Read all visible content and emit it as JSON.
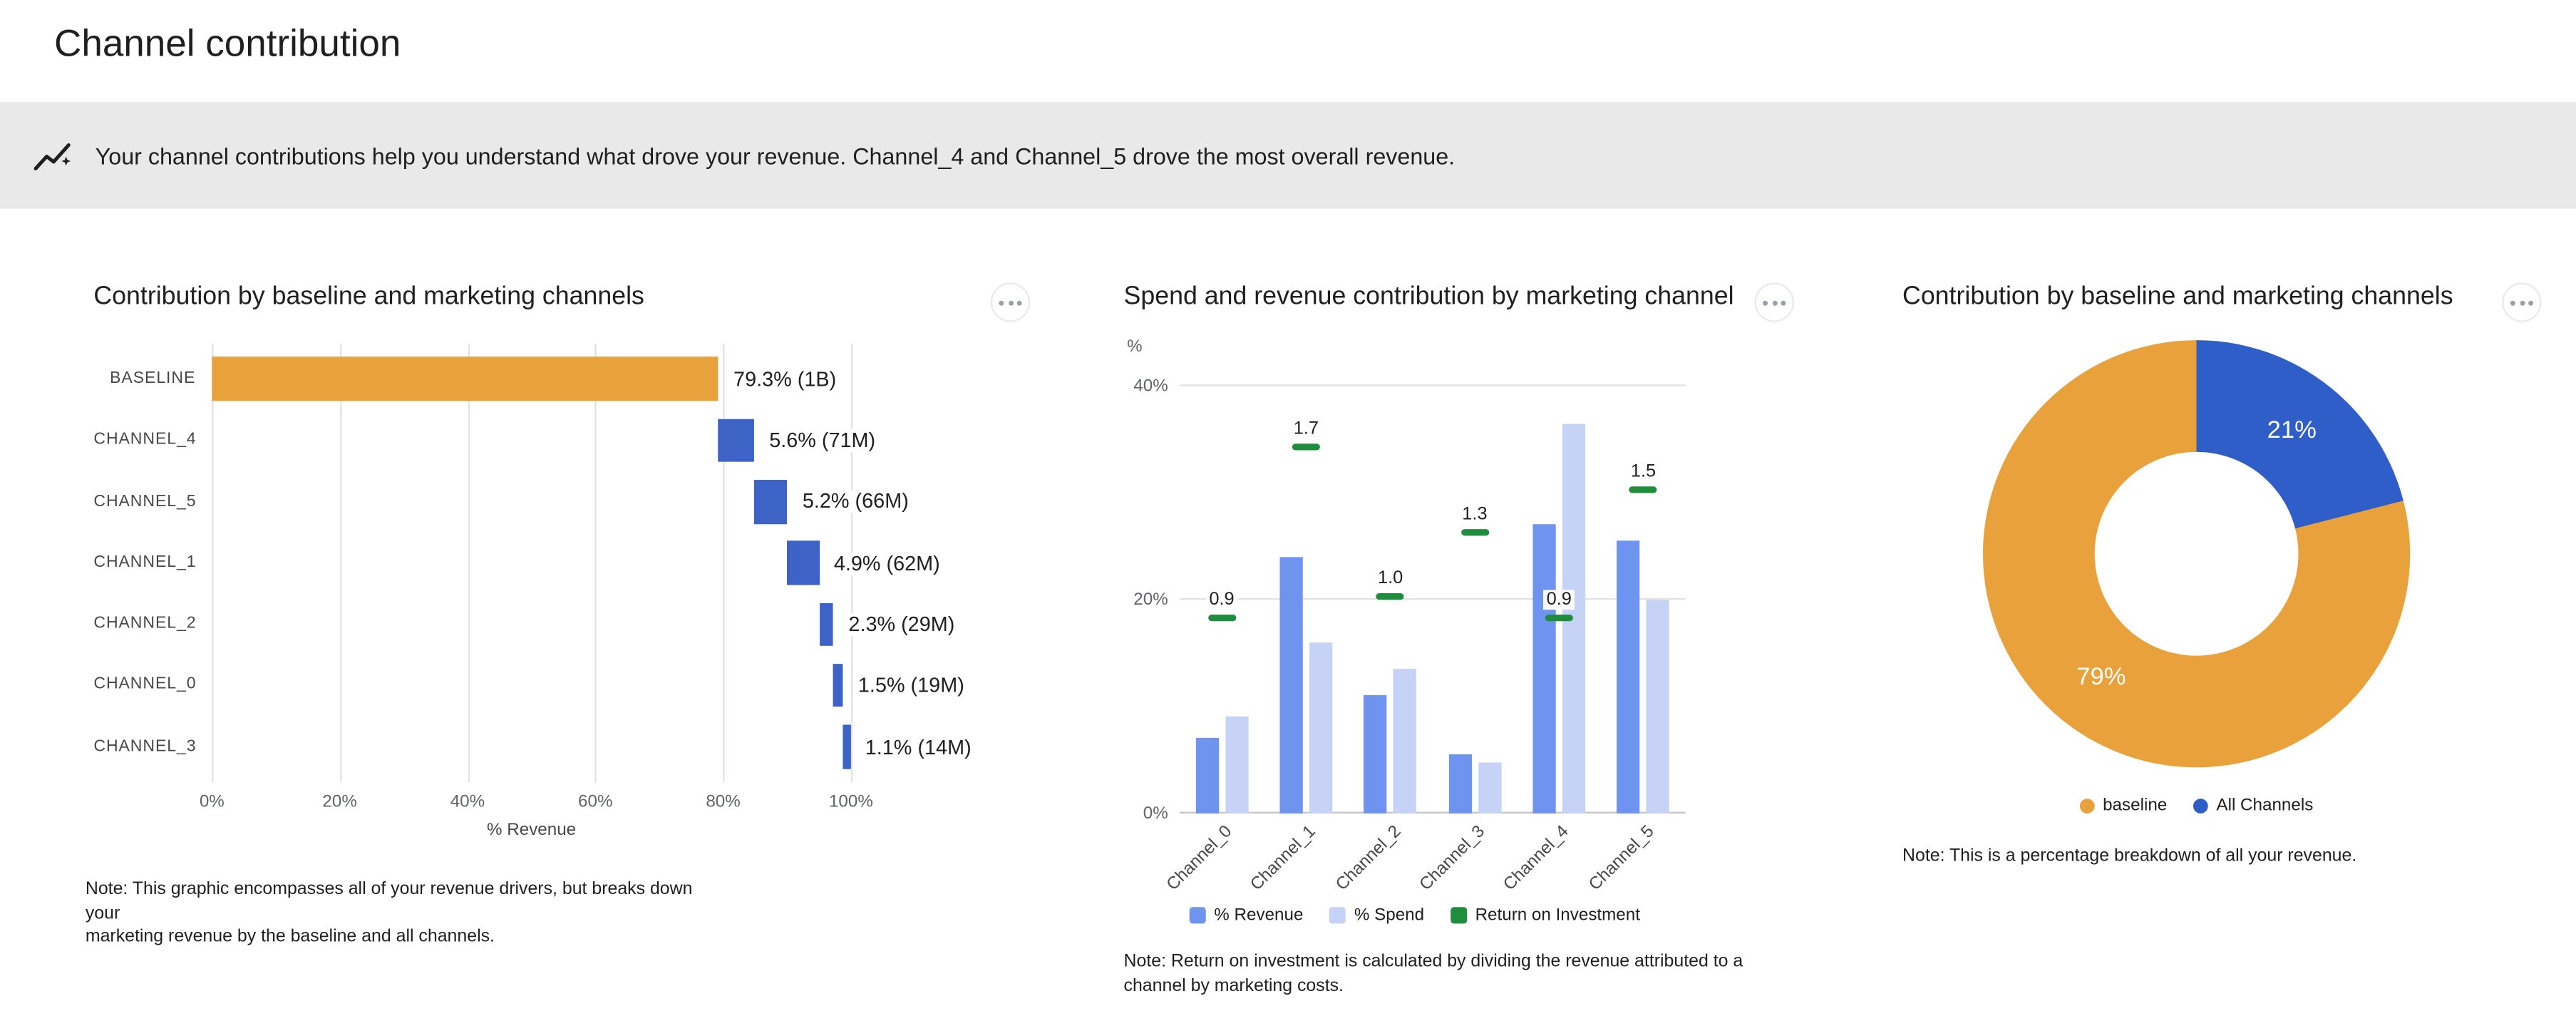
{
  "page": {
    "title": "Channel contribution"
  },
  "banner": {
    "icon": "insights-icon",
    "text": "Your channel contributions help you understand what drove your revenue. Channel_4 and Channel_5 drove the most overall revenue."
  },
  "ui": {
    "more_options_icon": "three-dots-horizontal"
  },
  "colors": {
    "baseline_gold": "#E9A23B",
    "waterfall_blue": "#3E63C6",
    "revenue_blue": "#6F94EF",
    "spend_blue": "#C6D3F7",
    "roi_green": "#1E8E3E",
    "donut_blue": "#2F5EC8"
  },
  "chart_data": [
    {
      "type": "bar",
      "variant": "horizontal_waterfall",
      "title": "Contribution by baseline and marketing channels",
      "xlabel": "% Revenue",
      "xlim": [
        0,
        100
      ],
      "x_ticks": [
        "0%",
        "20%",
        "40%",
        "60%",
        "80%",
        "100%"
      ],
      "categories": [
        "BASELINE",
        "CHANNEL_4",
        "CHANNEL_5",
        "CHANNEL_1",
        "CHANNEL_2",
        "CHANNEL_0",
        "CHANNEL_3"
      ],
      "values": [
        79.3,
        5.6,
        5.2,
        4.9,
        2.3,
        1.5,
        1.1
      ],
      "bar_starts": [
        0,
        79.3,
        84.9,
        90.1,
        95.0,
        97.3,
        98.8
      ],
      "value_labels": [
        "79.3% (1B)",
        "5.6% (71M)",
        "5.2% (66M)",
        "4.9% (62M)",
        "2.3% (29M)",
        "1.5% (19M)",
        "1.1% (14M)"
      ],
      "grid": true,
      "note": "Note: This graphic encompasses all of your revenue drivers, but breaks down your\nmarketing revenue by the baseline and all channels."
    },
    {
      "type": "bar",
      "variant": "grouped_with_roi_markers",
      "title": "Spend and revenue contribution by marketing channel",
      "ylabel": "%",
      "ylim": [
        0,
        41.5
      ],
      "y_ticks": [
        "0%",
        "20%",
        "40%"
      ],
      "categories": [
        "Channel_0",
        "Channel_1",
        "Channel_2",
        "Channel_3",
        "Channel_4",
        "Channel_5"
      ],
      "series": [
        {
          "name": "% Revenue",
          "values": [
            7,
            24,
            11,
            5.5,
            27,
            25.5
          ]
        },
        {
          "name": "% Spend",
          "values": [
            9,
            16,
            13.5,
            4.7,
            36.5,
            20
          ]
        },
        {
          "name": "Return on Investment",
          "values": [
            0.9,
            1.7,
            1.0,
            1.3,
            0.9,
            1.5
          ],
          "marker_scale_pct_per_unit": 20
        }
      ],
      "legend": [
        "% Revenue",
        "% Spend",
        "Return on Investment"
      ],
      "legend_position": "bottom",
      "note": "Note: Return on investment is calculated by dividing the revenue attributed to a\nchannel by marketing costs."
    },
    {
      "type": "pie",
      "variant": "donut",
      "title": "Contribution by baseline and marketing channels",
      "slices": [
        {
          "label": "All Channels",
          "value": 21,
          "display": "21%"
        },
        {
          "label": "baseline",
          "value": 79,
          "display": "79%"
        }
      ],
      "legend": [
        "baseline",
        "All Channels"
      ],
      "legend_position": "bottom",
      "note": "Note: This is a percentage breakdown of all your revenue."
    }
  ]
}
